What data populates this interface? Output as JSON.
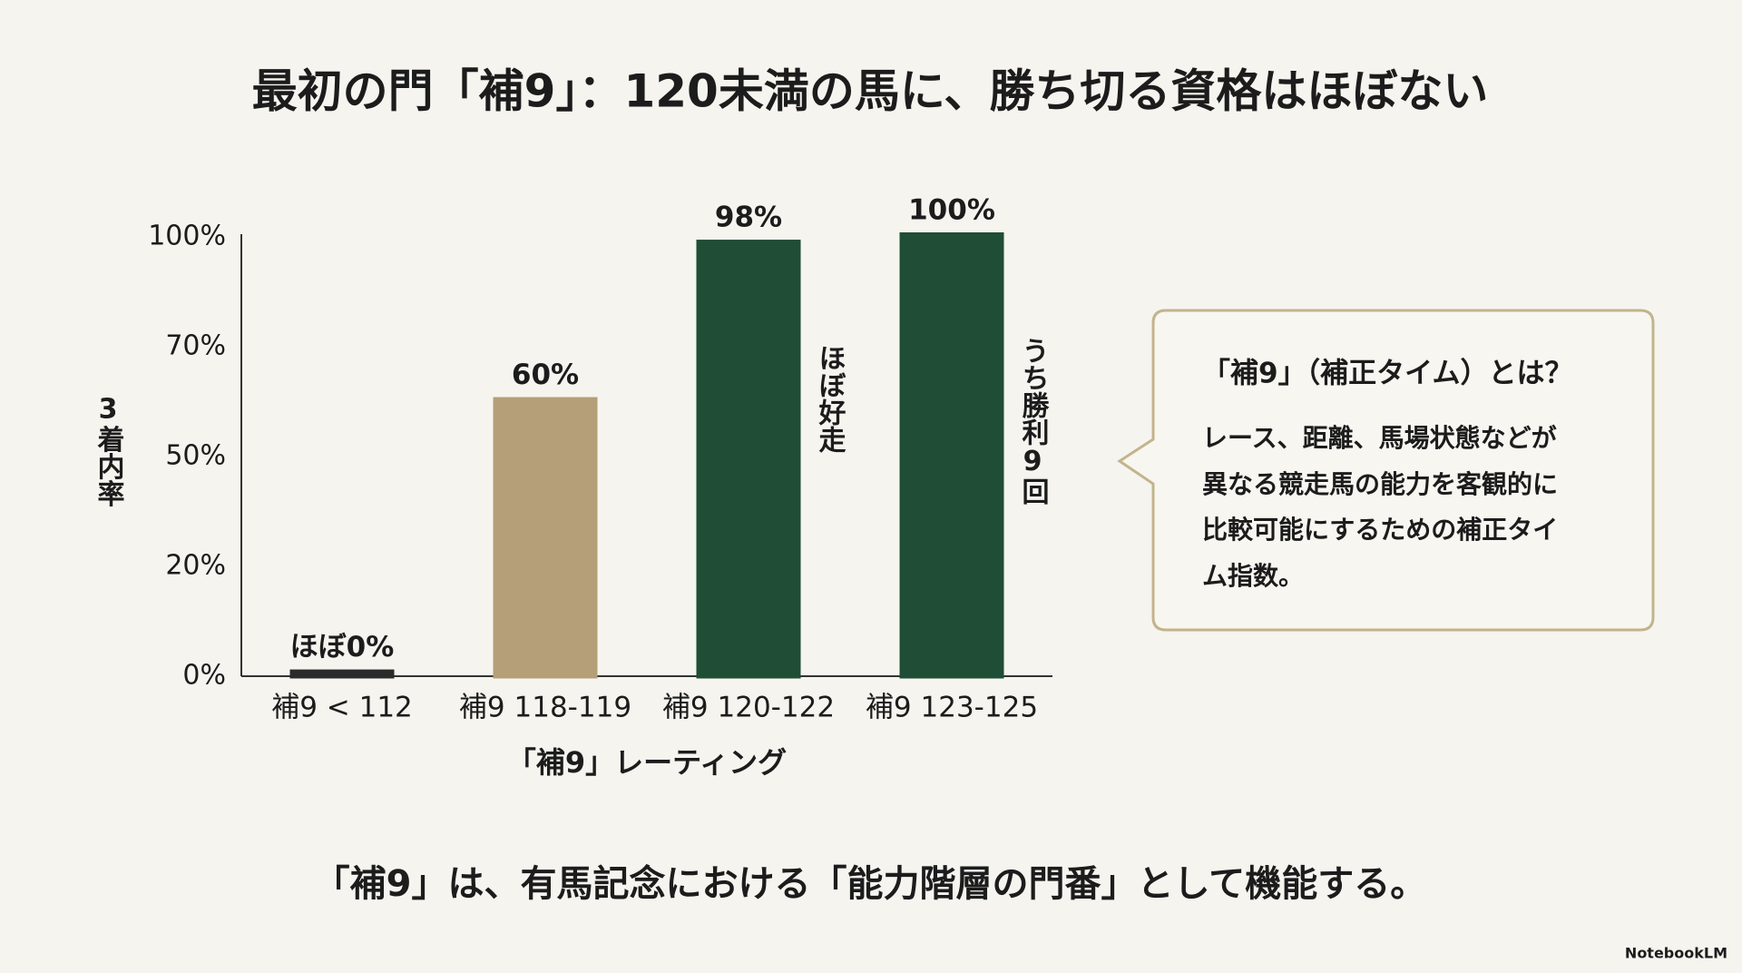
{
  "chart_data": {
    "type": "bar",
    "title": "最初の門「補9」：120未満の馬に、勝ち切る資格はほぼない",
    "y_axis_label": "3着内率",
    "x_axis_label": "「補9」レーティング",
    "categories": [
      "補9 < 112",
      "補9 118-119",
      "補9 120-122",
      "補9 123-125"
    ],
    "values": [
      0.4,
      60,
      98,
      100
    ],
    "value_labels": [
      "ほぼ0%",
      "60%",
      "98%",
      "100%"
    ],
    "colors": [
      "#2b2b2b",
      "#b59f78",
      "#1f4d35",
      "#1f4d35"
    ],
    "ylim": [
      0,
      100
    ],
    "yticks": [
      {
        "value": 0,
        "label": "0%"
      },
      {
        "value": 20,
        "label": "20%"
      },
      {
        "value": 50,
        "label": "50%"
      },
      {
        "value": 70,
        "label": "70%"
      },
      {
        "value": 100,
        "label": "100%"
      }
    ],
    "grid": false,
    "annotations": [
      {
        "category": 2,
        "text": "ほぼ好走"
      },
      {
        "category": 3,
        "text": "うち勝利9回"
      }
    ]
  },
  "callout": {
    "title": "「補9」（補正タイム）とは？",
    "lines": [
      "レース、距離、馬場状態などが",
      "異なる競走馬の能力を客観的に",
      "比較可能にするための補正タイ",
      "ム指数。"
    ]
  },
  "footer": "「補9」は、有馬記念における「能力階層の門番」として機能する。",
  "watermark": "NotebookLM"
}
